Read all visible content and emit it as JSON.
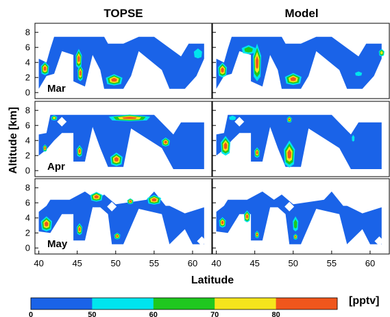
{
  "chart_data": {
    "type": "heatmap",
    "panel_titles": [
      "TOPSE",
      "Model"
    ],
    "row_labels": [
      "Mar",
      "Apr",
      "May"
    ],
    "xlabel": "Latitude",
    "ylabel": "Altitude [km]",
    "xlim": [
      39.5,
      62.5
    ],
    "xticks": [
      "40",
      "45",
      "50",
      "55",
      "60"
    ],
    "ylim": [
      -0.8,
      9.2
    ],
    "yticks": [
      "0",
      "2",
      "4",
      "6",
      "8"
    ],
    "colorbar": {
      "unit": "[pptv]",
      "levels": [
        0,
        50,
        60,
        70,
        80
      ],
      "tick_labels": [
        "0",
        "50",
        "60",
        "70",
        "80"
      ],
      "colors": [
        "#1a63e8",
        "#00e5ee",
        "#1fc81f",
        "#f5e51c",
        "#f0561c"
      ]
    },
    "background_color": "#1a63e8",
    "panels": [
      {
        "row": "Mar",
        "source": "TOPSE",
        "features": [
          {
            "lat": 40.8,
            "alt": 3.2,
            "level": 4,
            "w": 1.2,
            "h": 1.8
          },
          {
            "lat": 45.2,
            "alt": 4.5,
            "level": 4,
            "w": 0.9,
            "h": 2.6
          },
          {
            "lat": 45.4,
            "alt": 2.6,
            "level": 4,
            "w": 0.8,
            "h": 2.2
          },
          {
            "lat": 49.8,
            "alt": 1.7,
            "level": 4,
            "w": 2.4,
            "h": 1.5
          },
          {
            "lat": 60.7,
            "alt": 5.2,
            "level": 1,
            "w": 1.2,
            "h": 1.3
          }
        ]
      },
      {
        "row": "Mar",
        "source": "Model",
        "features": [
          {
            "lat": 40.8,
            "alt": 3.0,
            "level": 4,
            "w": 1.3,
            "h": 2.0
          },
          {
            "lat": 44.2,
            "alt": 5.7,
            "level": 2,
            "w": 2.0,
            "h": 1.2
          },
          {
            "lat": 45.3,
            "alt": 4.0,
            "level": 4,
            "w": 1.2,
            "h": 5.0
          },
          {
            "lat": 50.0,
            "alt": 1.8,
            "level": 4,
            "w": 2.4,
            "h": 1.6
          },
          {
            "lat": 58.5,
            "alt": 2.5,
            "level": 1,
            "w": 1.0,
            "h": 0.6
          },
          {
            "lat": 61.5,
            "alt": 5.3,
            "level": 3,
            "w": 0.8,
            "h": 1.0
          }
        ]
      },
      {
        "row": "Apr",
        "source": "TOPSE",
        "features": [
          {
            "lat": 40.8,
            "alt": 3.0,
            "level": 4,
            "w": 0.6,
            "h": 1.0
          },
          {
            "lat": 42.0,
            "alt": 7.0,
            "level": 3,
            "w": 0.9,
            "h": 0.7
          },
          {
            "lat": 45.3,
            "alt": 2.6,
            "level": 4,
            "w": 0.8,
            "h": 1.6
          },
          {
            "lat": 51.8,
            "alt": 7.0,
            "level": 4,
            "w": 6.0,
            "h": 0.9
          },
          {
            "lat": 50.1,
            "alt": 1.5,
            "level": 4,
            "w": 1.8,
            "h": 1.8
          },
          {
            "lat": 56.5,
            "alt": 3.8,
            "level": 4,
            "w": 1.2,
            "h": 1.2
          }
        ]
      },
      {
        "row": "Apr",
        "source": "Model",
        "features": [
          {
            "lat": 41.2,
            "alt": 3.3,
            "level": 4,
            "w": 1.4,
            "h": 2.6
          },
          {
            "lat": 42.1,
            "alt": 7.0,
            "level": 1,
            "w": 1.0,
            "h": 0.6
          },
          {
            "lat": 45.3,
            "alt": 2.4,
            "level": 4,
            "w": 0.8,
            "h": 1.4
          },
          {
            "lat": 49.5,
            "alt": 6.8,
            "level": 4,
            "w": 0.7,
            "h": 0.9
          },
          {
            "lat": 49.5,
            "alt": 2.2,
            "level": 4,
            "w": 1.6,
            "h": 3.6
          },
          {
            "lat": 57.8,
            "alt": 4.3,
            "level": 1,
            "w": 0.4,
            "h": 0.9
          }
        ]
      },
      {
        "row": "May",
        "source": "TOPSE",
        "features": [
          {
            "lat": 41.0,
            "alt": 3.2,
            "level": 4,
            "w": 1.6,
            "h": 2.0
          },
          {
            "lat": 45.3,
            "alt": 2.5,
            "level": 4,
            "w": 0.8,
            "h": 1.6
          },
          {
            "lat": 47.5,
            "alt": 6.8,
            "level": 4,
            "w": 1.8,
            "h": 1.3
          },
          {
            "lat": 50.2,
            "alt": 1.6,
            "level": 4,
            "w": 0.9,
            "h": 0.9
          },
          {
            "lat": 51.9,
            "alt": 6.2,
            "level": 4,
            "w": 0.9,
            "h": 0.8
          },
          {
            "lat": 55.0,
            "alt": 6.4,
            "level": 4,
            "w": 2.0,
            "h": 1.3
          }
        ]
      },
      {
        "row": "May",
        "source": "Model",
        "features": [
          {
            "lat": 40.8,
            "alt": 3.4,
            "level": 4,
            "w": 1.0,
            "h": 1.4
          },
          {
            "lat": 44.0,
            "alt": 4.2,
            "level": 4,
            "w": 0.9,
            "h": 1.6
          },
          {
            "lat": 45.3,
            "alt": 1.8,
            "level": 4,
            "w": 0.6,
            "h": 1.0
          },
          {
            "lat": 50.3,
            "alt": 3.2,
            "level": 2,
            "w": 0.8,
            "h": 2.0
          },
          {
            "lat": 50.3,
            "alt": 1.5,
            "level": 4,
            "w": 0.6,
            "h": 0.8
          }
        ]
      }
    ]
  }
}
